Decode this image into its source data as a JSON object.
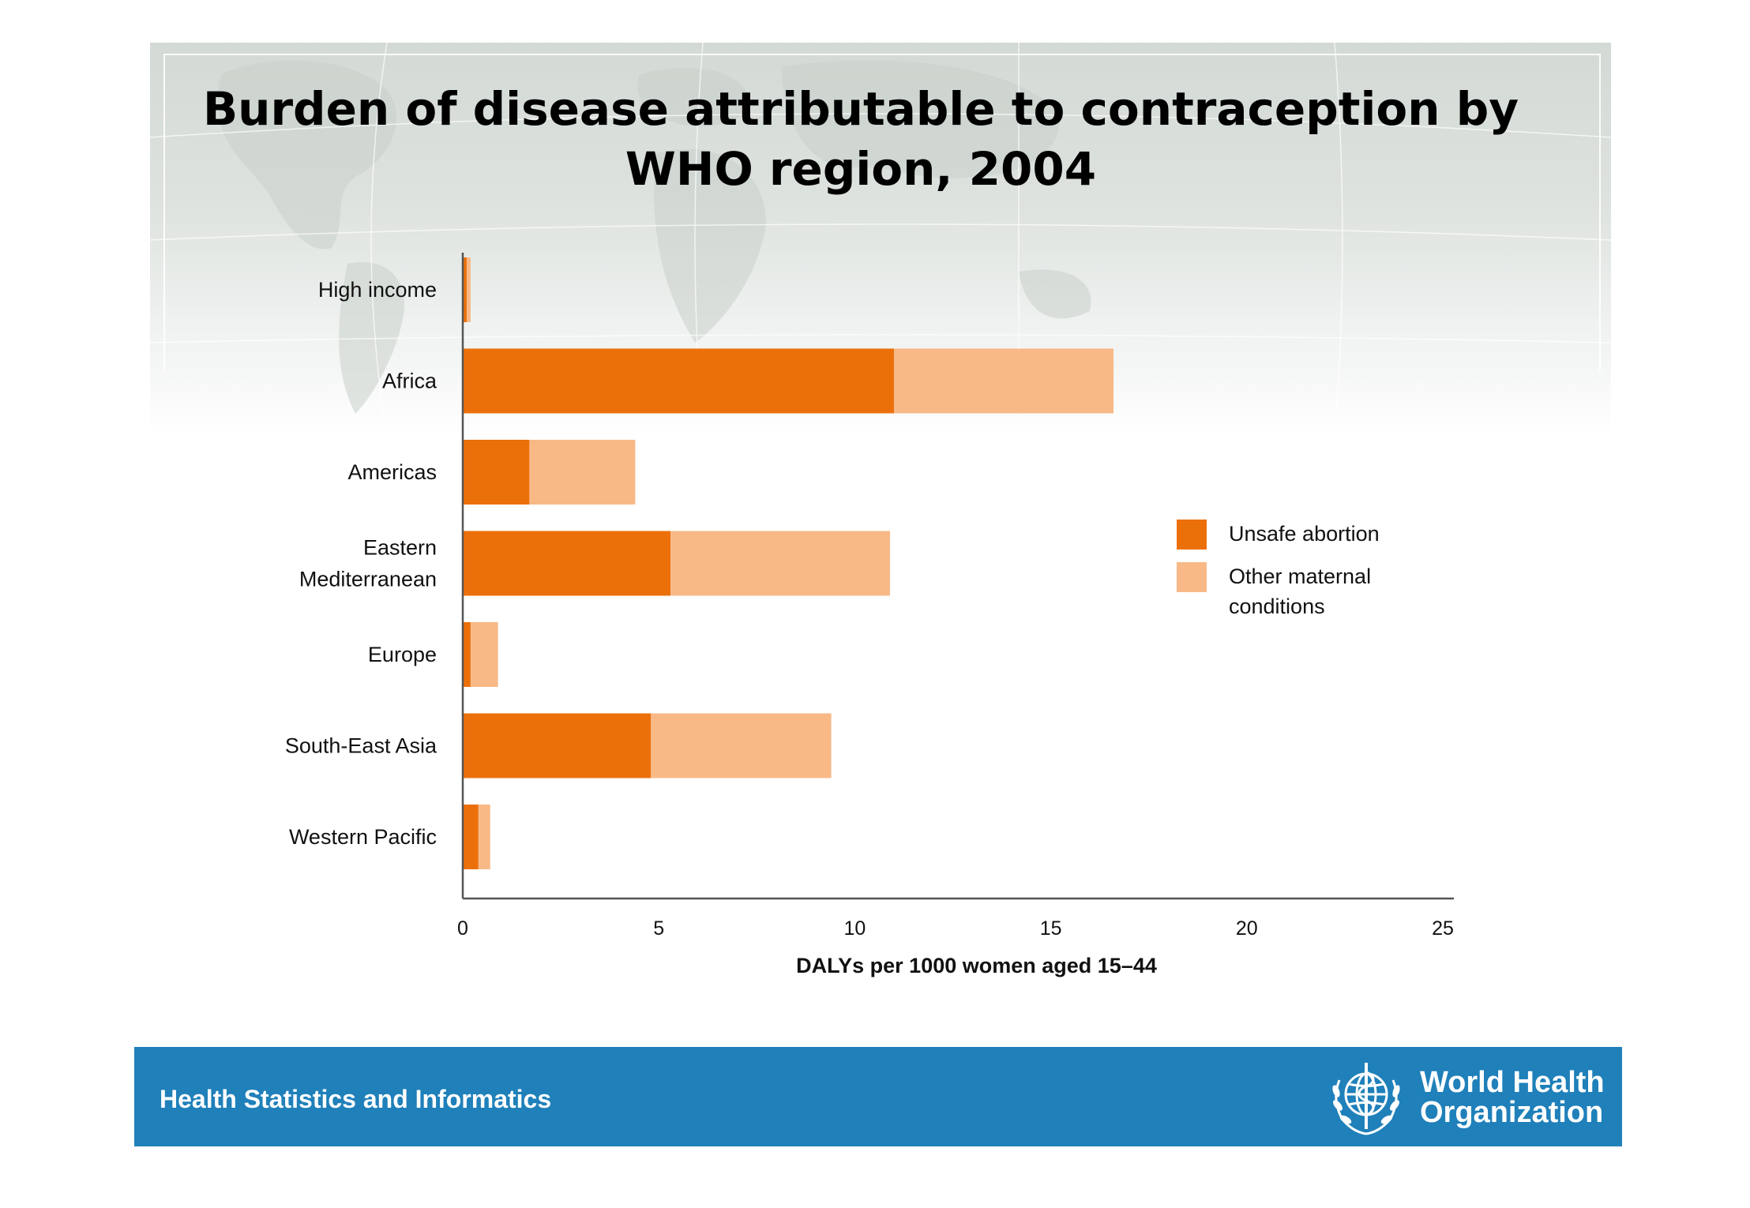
{
  "slide": {
    "title": "Burden of disease attributable to contraception by WHO region, 2004",
    "footer_text": "Health Statistics and Informatics",
    "logo": {
      "icon": "who-emblem-icon",
      "line1": "World Health",
      "line2": "Organization"
    }
  },
  "chart_data": {
    "type": "bar",
    "orientation": "horizontal",
    "stacked": true,
    "title": "Burden of disease attributable to contraception by WHO region, 2004",
    "xlabel": "DALYs per 1000 women aged 15–44",
    "ylabel": "",
    "xlim": [
      0,
      25
    ],
    "xticks": [
      0,
      5,
      10,
      15,
      20,
      25
    ],
    "grid": false,
    "legend_position": "right",
    "categories": [
      [
        "High income"
      ],
      [
        "Africa"
      ],
      [
        "Americas"
      ],
      [
        "Eastern",
        "Mediterranean"
      ],
      [
        "Europe"
      ],
      [
        "South-East Asia"
      ],
      [
        "Western Pacific"
      ]
    ],
    "series": [
      {
        "name": "Unsafe abortion",
        "legend_lines": [
          "Unsafe abortion"
        ],
        "color": "#ec700a",
        "values": [
          0.1,
          11.0,
          1.7,
          5.3,
          0.2,
          4.8,
          0.4
        ]
      },
      {
        "name": "Other maternal conditions",
        "legend_lines": [
          "Other maternal",
          "conditions"
        ],
        "color": "#f8b987",
        "values": [
          0.1,
          5.6,
          2.7,
          5.6,
          0.7,
          4.6,
          0.3
        ]
      }
    ]
  }
}
